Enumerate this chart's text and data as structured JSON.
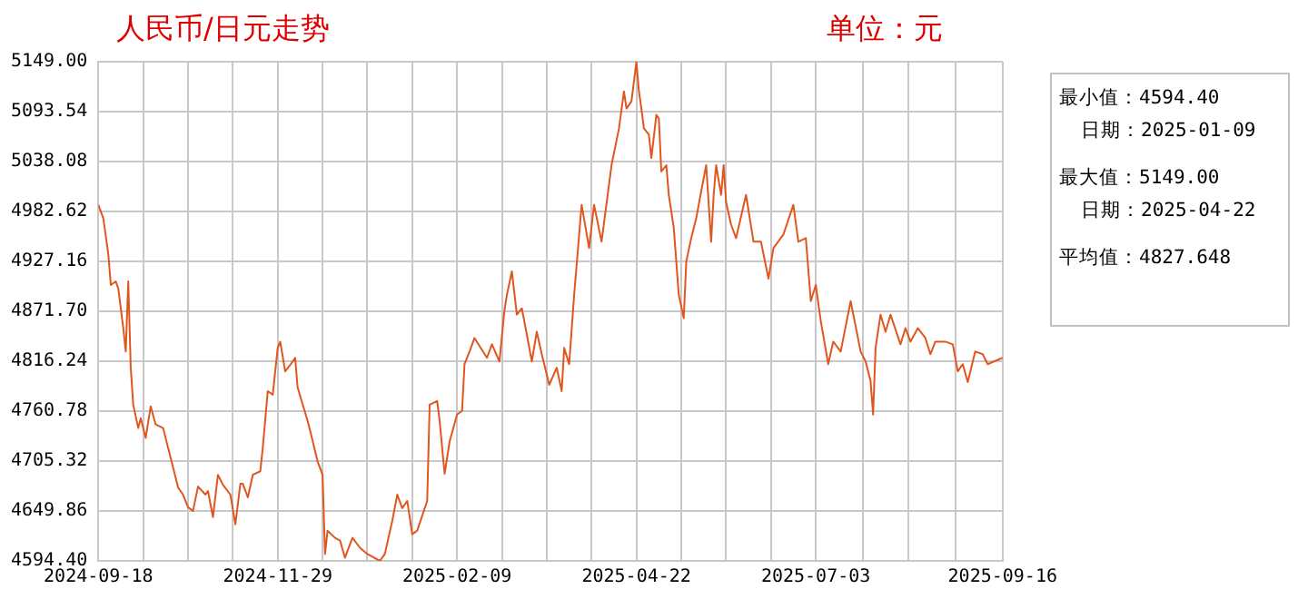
{
  "chart_data": {
    "type": "line",
    "title": "人民币/日元走势",
    "subtitle": "单位：元",
    "annotations": [
      "最小值：4594.40",
      "日期：2025-01-09",
      "最大值：5149.00",
      "日期：2025-04-22",
      "平均值：4827.648"
    ],
    "x": [
      "2024-09-18",
      "2024-09-20",
      "2024-09-22",
      "2024-09-23",
      "2024-09-25",
      "2024-09-26",
      "2024-09-28",
      "2024-09-29",
      "2024-09-30",
      "2024-10-01",
      "2024-10-02",
      "2024-10-04",
      "2024-10-05",
      "2024-10-07",
      "2024-10-09",
      "2024-10-11",
      "2024-10-14",
      "2024-10-16",
      "2024-10-18",
      "2024-10-20",
      "2024-10-22",
      "2024-10-24",
      "2024-10-26",
      "2024-10-28",
      "2024-10-31",
      "2024-11-01",
      "2024-11-03",
      "2024-11-05",
      "2024-11-07",
      "2024-11-10",
      "2024-11-12",
      "2024-11-14",
      "2024-11-15",
      "2024-11-17",
      "2024-11-19",
      "2024-11-22",
      "2024-11-23",
      "2024-11-25",
      "2024-11-27",
      "2024-11-29",
      "2024-11-30",
      "2024-12-02",
      "2024-12-04",
      "2024-12-06",
      "2024-12-07",
      "2024-12-11",
      "2024-12-13",
      "2024-12-15",
      "2024-12-17",
      "2024-12-18",
      "2024-12-19",
      "2024-12-22",
      "2024-12-24",
      "2024-12-26",
      "2024-12-29",
      "2025-01-01",
      "2025-01-04",
      "2025-01-09",
      "2025-01-11",
      "2025-01-14",
      "2025-01-16",
      "2025-01-18",
      "2025-01-20",
      "2025-01-22",
      "2025-01-24",
      "2025-01-28",
      "2025-01-29",
      "2025-02-01",
      "2025-02-02",
      "2025-02-04",
      "2025-02-06",
      "2025-02-09",
      "2025-02-11",
      "2025-02-12",
      "2025-02-14",
      "2025-02-16",
      "2025-02-21",
      "2025-02-23",
      "2025-02-26",
      "2025-02-28",
      "2025-03-01",
      "2025-03-03",
      "2025-03-05",
      "2025-03-07",
      "2025-03-09",
      "2025-03-11",
      "2025-03-13",
      "2025-03-15",
      "2025-03-18",
      "2025-03-21",
      "2025-03-23",
      "2025-03-24",
      "2025-03-26",
      "2025-03-28",
      "2025-03-31",
      "2025-04-03",
      "2025-04-05",
      "2025-04-08",
      "2025-04-12",
      "2025-04-15",
      "2025-04-17",
      "2025-04-18",
      "2025-04-20",
      "2025-04-22",
      "2025-04-23",
      "2025-04-24",
      "2025-04-25",
      "2025-04-27",
      "2025-04-28",
      "2025-04-30",
      "2025-05-01",
      "2025-05-02",
      "2025-05-04",
      "2025-05-05",
      "2025-05-07",
      "2025-05-09",
      "2025-05-11",
      "2025-05-12",
      "2025-05-14",
      "2025-05-16",
      "2025-05-18",
      "2025-05-20",
      "2025-05-22",
      "2025-05-23",
      "2025-05-24",
      "2025-05-26",
      "2025-05-27",
      "2025-05-28",
      "2025-05-30",
      "2025-06-01",
      "2025-06-05",
      "2025-06-08",
      "2025-06-11",
      "2025-06-14",
      "2025-06-16",
      "2025-06-20",
      "2025-06-24",
      "2025-06-26",
      "2025-06-29",
      "2025-07-01",
      "2025-07-03",
      "2025-07-05",
      "2025-07-08",
      "2025-07-10",
      "2025-07-13",
      "2025-07-17",
      "2025-07-21",
      "2025-07-23",
      "2025-07-25",
      "2025-07-26",
      "2025-07-27",
      "2025-07-29",
      "2025-07-31",
      "2025-08-02",
      "2025-08-06",
      "2025-08-08",
      "2025-08-10",
      "2025-08-13",
      "2025-08-16",
      "2025-08-18",
      "2025-08-20",
      "2025-08-24",
      "2025-08-27",
      "2025-08-29",
      "2025-08-31",
      "2025-09-02",
      "2025-09-05",
      "2025-09-08",
      "2025-09-10",
      "2025-09-16"
    ],
    "series": [
      {
        "color": "#e0561e",
        "values": [
          4990,
          4975,
          4935,
          4901,
          4905,
          4897,
          4853,
          4827,
          4905,
          4809,
          4768,
          4742,
          4753,
          4731,
          4766,
          4746,
          4742,
          4720,
          4698,
          4676,
          4668,
          4654,
          4650,
          4677,
          4668,
          4672,
          4643,
          4690,
          4679,
          4668,
          4635,
          4680,
          4680,
          4665,
          4690,
          4694,
          4720,
          4783,
          4779,
          4831,
          4838,
          4805,
          4812,
          4820,
          4787,
          4750,
          4728,
          4705,
          4690,
          4602,
          4628,
          4620,
          4617,
          4598,
          4620,
          4609,
          4602,
          4594.4,
          4602,
          4639,
          4668,
          4653,
          4661,
          4624,
          4628,
          4661,
          4768,
          4772,
          4750,
          4691,
          4727,
          4757,
          4761,
          4813,
          4827,
          4842,
          4820,
          4835,
          4816,
          4872,
          4890,
          4916,
          4868,
          4875,
          4846,
          4816,
          4849,
          4824,
          4790,
          4809,
          4783,
          4831,
          4813,
          4890,
          4990,
          4942,
          4990,
          4949,
          5034,
          5075,
          5116,
          5097,
          5105,
          5149,
          5116,
          5097,
          5075,
          5068,
          5042,
          5090,
          5086,
          5027,
          5034,
          5001,
          4964,
          4890,
          4864,
          4927,
          4953,
          4975,
          5005,
          5034,
          4949,
          5001,
          5034,
          5001,
          5034,
          4993,
          4968,
          4953,
          5001,
          4949,
          4949,
          4908,
          4942,
          4957,
          4990,
          4949,
          4953,
          4883,
          4901,
          4861,
          4813,
          4838,
          4827,
          4883,
          4827,
          4816,
          4794,
          4757,
          4831,
          4868,
          4849,
          4868,
          4835,
          4853,
          4838,
          4853,
          4842,
          4824,
          4838,
          4838,
          4835,
          4805,
          4813,
          4793,
          4827,
          4824,
          4813,
          4820
        ]
      }
    ],
    "xlim": [
      "2024-09-18",
      "2025-09-16"
    ],
    "xticks": [
      "2024-09-18",
      {
        "value": "2024-10-06",
        "label": null
      },
      {
        "value": "2024-10-24",
        "label": null
      },
      {
        "value": "2024-11-11",
        "label": null
      },
      "2024-11-29",
      {
        "value": "2024-12-17",
        "label": null
      },
      {
        "value": "2025-01-04",
        "label": null
      },
      {
        "value": "2025-01-22",
        "label": null
      },
      "2025-02-09",
      {
        "value": "2025-02-27",
        "label": null
      },
      {
        "value": "2025-03-17",
        "label": null
      },
      {
        "value": "2025-04-04",
        "label": null
      },
      "2025-04-22",
      {
        "value": "2025-05-10",
        "label": null
      },
      {
        "value": "2025-05-28",
        "label": null
      },
      {
        "value": "2025-06-15",
        "label": null
      },
      "2025-07-03",
      {
        "value": "2025-07-22",
        "label": null
      },
      {
        "value": "2025-08-09",
        "label": null
      },
      {
        "value": "2025-08-28",
        "label": null
      },
      "2025-09-16"
    ],
    "ylim": [
      4594.4,
      5149
    ],
    "yticks": [
      {
        "value": 4594.4,
        "label": "4594.40"
      },
      {
        "value": 4649.86,
        "label": "4649.86"
      },
      {
        "value": 4705.32,
        "label": "4705.32"
      },
      {
        "value": 4760.78,
        "label": "4760.78"
      },
      {
        "value": 4816.24,
        "label": "4816.24"
      },
      {
        "value": 4871.7,
        "label": "4871.70"
      },
      {
        "value": 4927.16,
        "label": "4927.16"
      },
      {
        "value": 4982.62,
        "label": "4982.62"
      },
      {
        "value": 5038.08,
        "label": "5038.08"
      },
      {
        "value": 5093.54,
        "label": "5093.54"
      },
      {
        "value": 5149,
        "label": "5149.00"
      }
    ],
    "grid": true,
    "marker": "none",
    "line_style": "solid",
    "legend": false
  }
}
